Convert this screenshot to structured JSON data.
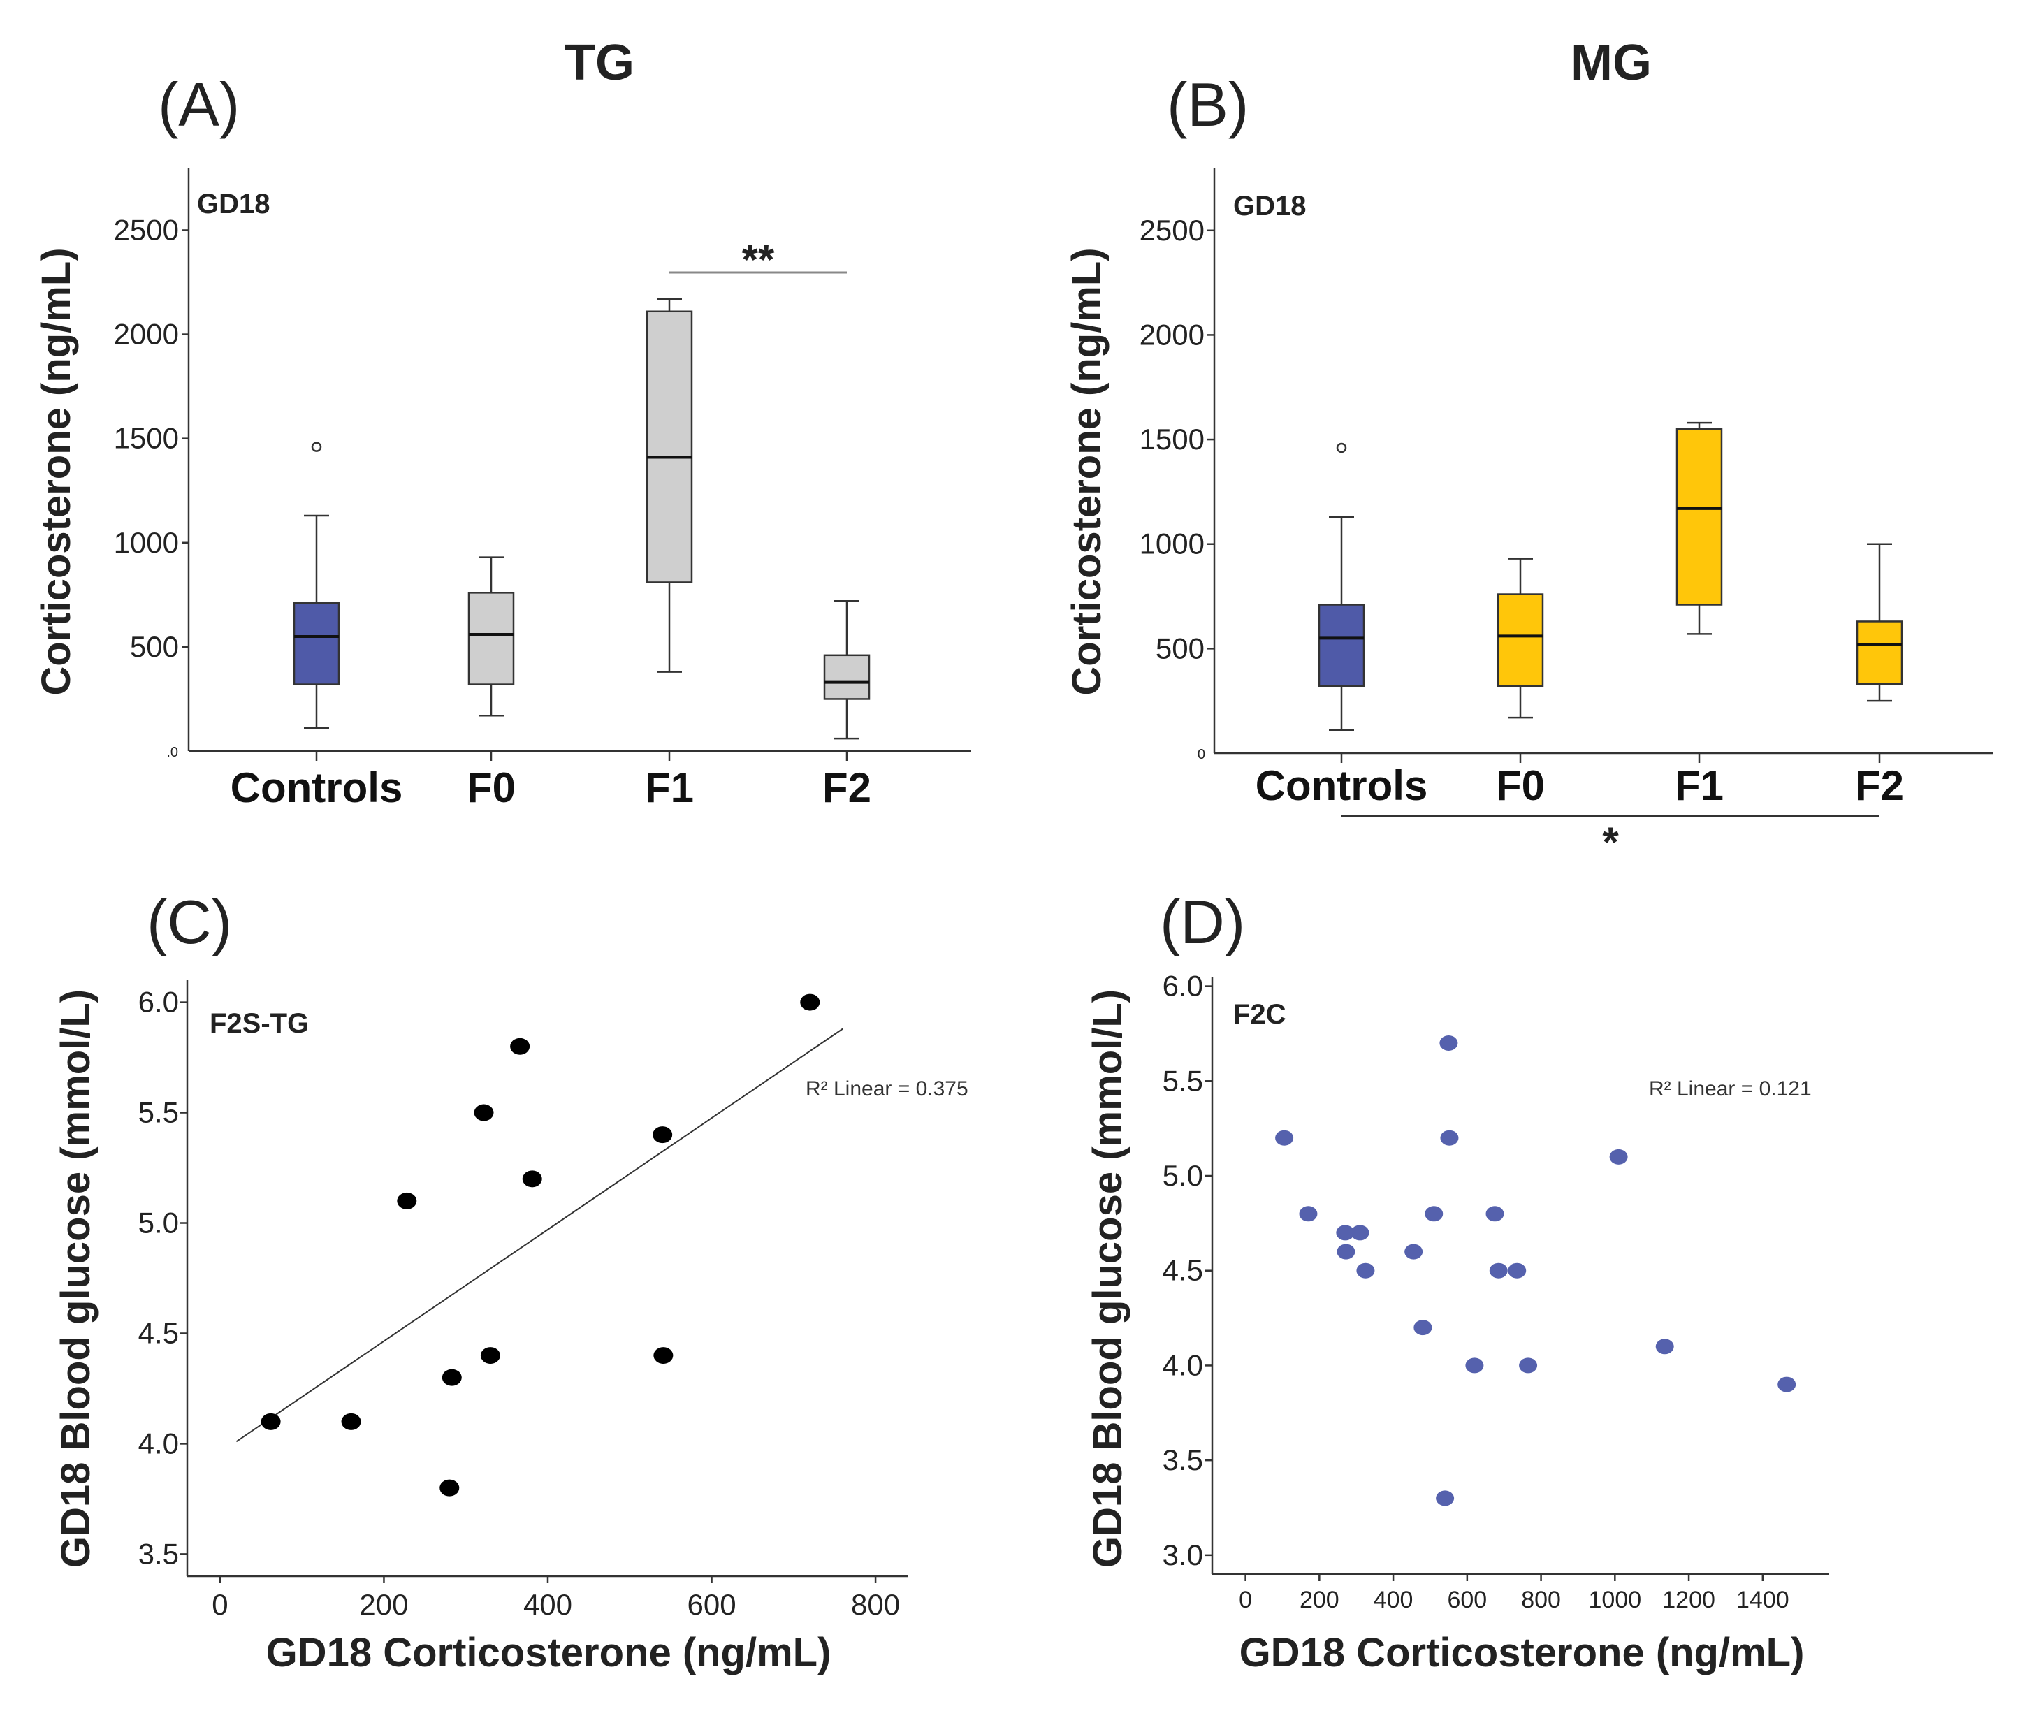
{
  "panels": {
    "A": {
      "letter": "(A)",
      "group": "TG",
      "inset": "GD18"
    },
    "B": {
      "letter": "(B)",
      "group": "MG",
      "inset": "GD18"
    },
    "C": {
      "letter": "(C)",
      "inset": "F2S-TG",
      "r2": "R² Linear = 0.375"
    },
    "D": {
      "letter": "(D)",
      "inset": "F2C",
      "r2": "R² Linear = 0.121"
    }
  },
  "colors": {
    "controls": "#4f5aa8",
    "tg": "#cfcfcf",
    "mg": "#ffc60a",
    "points_c": "#000000",
    "points_d": "#5561ad"
  },
  "chart_data": [
    {
      "type": "box",
      "id": "A",
      "title": "TG",
      "ylabel": "Corticosterone (ng/mL)",
      "ylim": [
        0,
        2800
      ],
      "yticks": [
        500,
        1000,
        1500,
        2000,
        2500
      ],
      "zero_label": ".0",
      "categories": [
        "Controls",
        "F0",
        "F1",
        "F2"
      ],
      "boxes": [
        {
          "category": "Controls",
          "whisker_low": 110,
          "q1": 320,
          "median": 550,
          "q3": 710,
          "whisker_high": 1130,
          "outliers": [
            1460
          ],
          "fill": "controls"
        },
        {
          "category": "F0",
          "whisker_low": 170,
          "q1": 320,
          "median": 560,
          "q3": 760,
          "whisker_high": 930,
          "outliers": [],
          "fill": "tg"
        },
        {
          "category": "F1",
          "whisker_low": 380,
          "q1": 810,
          "median": 1410,
          "q3": 2110,
          "whisker_high": 2170,
          "outliers": [],
          "fill": "tg"
        },
        {
          "category": "F2",
          "whisker_low": 60,
          "q1": 250,
          "median": 330,
          "q3": 460,
          "whisker_high": 720,
          "outliers": [],
          "fill": "tg"
        }
      ],
      "significance": [
        {
          "from": "F1",
          "to": "F2",
          "label": "**",
          "position": "above"
        }
      ]
    },
    {
      "type": "box",
      "id": "B",
      "title": "MG",
      "ylabel": "Corticosterone (ng/mL)",
      "ylim": [
        0,
        2800
      ],
      "yticks": [
        500,
        1000,
        1500,
        2000,
        2500
      ],
      "zero_label": "0",
      "categories": [
        "Controls",
        "F0",
        "F1",
        "F2"
      ],
      "boxes": [
        {
          "category": "Controls",
          "whisker_low": 110,
          "q1": 320,
          "median": 550,
          "q3": 710,
          "whisker_high": 1130,
          "outliers": [
            1460
          ],
          "fill": "controls"
        },
        {
          "category": "F0",
          "whisker_low": 170,
          "q1": 320,
          "median": 560,
          "q3": 760,
          "whisker_high": 930,
          "outliers": [],
          "fill": "mg"
        },
        {
          "category": "F1",
          "whisker_low": 570,
          "q1": 710,
          "median": 1170,
          "q3": 1550,
          "whisker_high": 1580,
          "outliers": [],
          "fill": "mg"
        },
        {
          "category": "F2",
          "whisker_low": 250,
          "q1": 330,
          "median": 520,
          "q3": 630,
          "whisker_high": 1000,
          "outliers": [],
          "fill": "mg"
        }
      ],
      "significance": [
        {
          "from": "Controls",
          "to": "F2",
          "label": "*",
          "position": "below"
        }
      ]
    },
    {
      "type": "scatter",
      "id": "C",
      "xlabel": "GD18 Corticosterone (ng/mL)",
      "ylabel": "GD18 Blood glucose (mmol/L)",
      "xlim": [
        -40,
        840
      ],
      "ylim": [
        3.4,
        6.1
      ],
      "xticks": [
        0,
        200,
        400,
        600,
        800
      ],
      "yticks": [
        3.5,
        4.0,
        4.5,
        5.0,
        5.5,
        6.0
      ],
      "points": [
        {
          "x": 62,
          "y": 4.1
        },
        {
          "x": 160,
          "y": 4.1
        },
        {
          "x": 228,
          "y": 5.1
        },
        {
          "x": 280,
          "y": 3.8
        },
        {
          "x": 283,
          "y": 4.3
        },
        {
          "x": 322,
          "y": 5.5
        },
        {
          "x": 330,
          "y": 4.4
        },
        {
          "x": 366,
          "y": 5.8
        },
        {
          "x": 381,
          "y": 5.2
        },
        {
          "x": 540,
          "y": 5.4
        },
        {
          "x": 541,
          "y": 4.4
        },
        {
          "x": 720,
          "y": 6.0
        }
      ],
      "fit": {
        "x1": 20,
        "y1": 4.01,
        "x2": 760,
        "y2": 5.88
      },
      "r2": 0.375
    },
    {
      "type": "scatter",
      "id": "D",
      "xlabel": "GD18 Corticosterone (ng/mL)",
      "ylabel": "GD18 Blood glucose (mmol/L)",
      "xlim": [
        -90,
        1580
      ],
      "ylim": [
        2.9,
        6.05
      ],
      "xticks": [
        0,
        200,
        400,
        600,
        800,
        1000,
        1200,
        1400
      ],
      "yticks": [
        3.0,
        3.5,
        4.0,
        4.5,
        5.0,
        5.5,
        6.0
      ],
      "points": [
        {
          "x": 105,
          "y": 5.2
        },
        {
          "x": 170,
          "y": 4.8
        },
        {
          "x": 270,
          "y": 4.7
        },
        {
          "x": 272,
          "y": 4.6
        },
        {
          "x": 310,
          "y": 4.7
        },
        {
          "x": 325,
          "y": 4.5
        },
        {
          "x": 455,
          "y": 4.6
        },
        {
          "x": 480,
          "y": 4.2
        },
        {
          "x": 510,
          "y": 4.8
        },
        {
          "x": 540,
          "y": 3.3
        },
        {
          "x": 550,
          "y": 5.7
        },
        {
          "x": 552,
          "y": 5.2
        },
        {
          "x": 620,
          "y": 4.0
        },
        {
          "x": 675,
          "y": 4.8
        },
        {
          "x": 685,
          "y": 4.5
        },
        {
          "x": 735,
          "y": 4.5
        },
        {
          "x": 765,
          "y": 4.0
        },
        {
          "x": 1010,
          "y": 5.1
        },
        {
          "x": 1135,
          "y": 4.1
        },
        {
          "x": 1465,
          "y": 3.9
        }
      ],
      "r2": 0.121
    }
  ]
}
